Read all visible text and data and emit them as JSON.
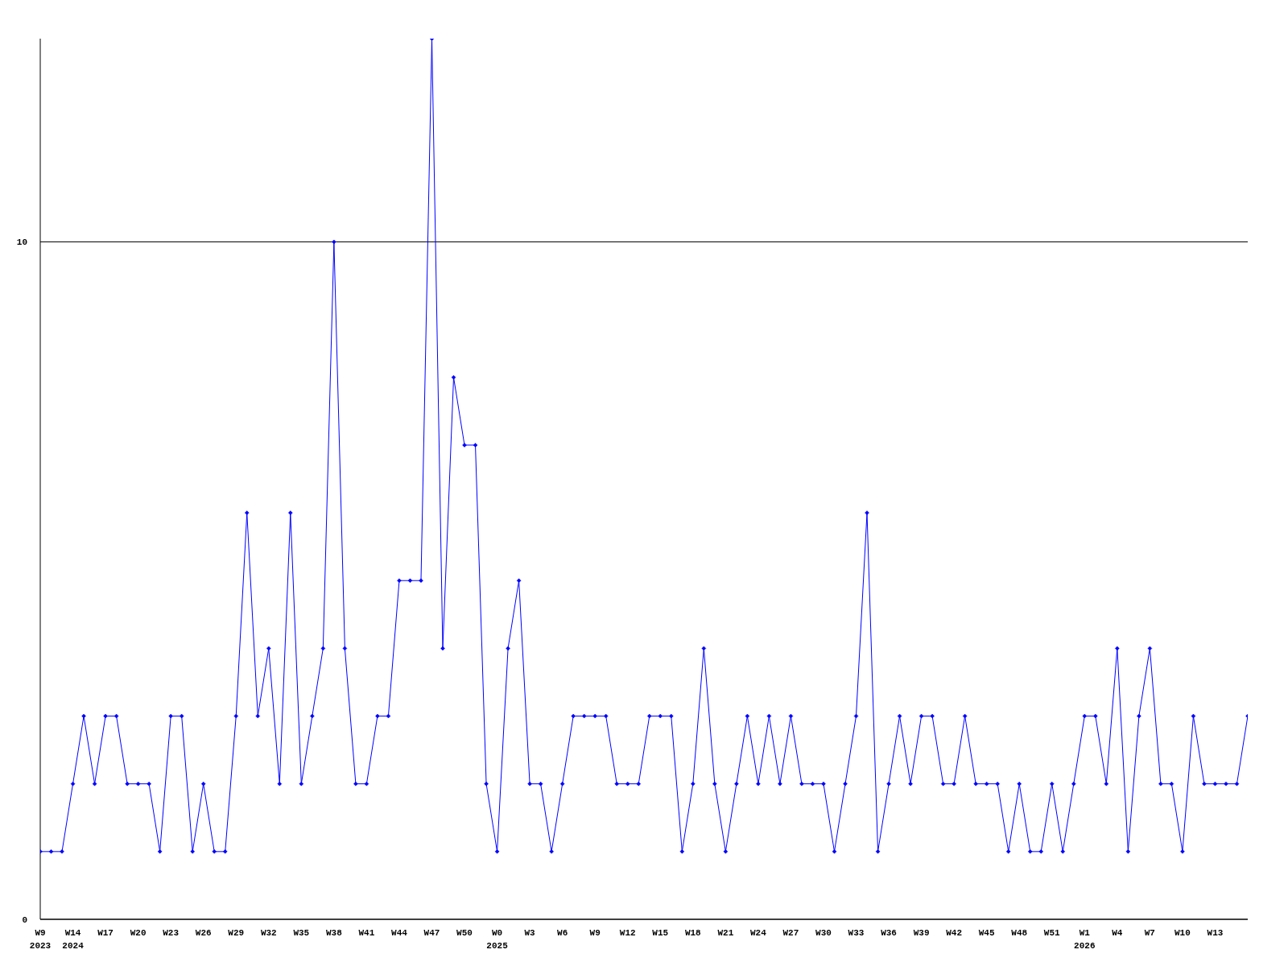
{
  "chart_data": {
    "type": "line",
    "categories": [
      "W9\n2023",
      null,
      null,
      "W14\n2024",
      null,
      null,
      "W17",
      null,
      null,
      "W20",
      null,
      null,
      "W23",
      null,
      null,
      "W26",
      null,
      null,
      "W29",
      null,
      null,
      "W32",
      null,
      null,
      "W35",
      null,
      null,
      "W38",
      null,
      null,
      "W41",
      null,
      null,
      "W44",
      null,
      null,
      "W47",
      null,
      null,
      "W50",
      null,
      null,
      "W0\n2025",
      null,
      null,
      "W3",
      null,
      null,
      "W6",
      null,
      null,
      "W9",
      null,
      null,
      "W12",
      null,
      null,
      "W15",
      null,
      null,
      "W18",
      null,
      null,
      "W21",
      null,
      null,
      "W24",
      null,
      null,
      "W27",
      null,
      null,
      "W30",
      null,
      null,
      "W33",
      null,
      null,
      "W36",
      null,
      null,
      "W39",
      null,
      null,
      "W42",
      null,
      null,
      "W45",
      null,
      null,
      "W48",
      null,
      null,
      "W51",
      null,
      null,
      "W1\n2026",
      null,
      null,
      "W4",
      null,
      null,
      "W7",
      null,
      null,
      "W10",
      null,
      null,
      "W13",
      null,
      null,
      null
    ],
    "series": [
      {
        "color": "#0000ff",
        "values": [
          1,
          1,
          1,
          2,
          3,
          2,
          3,
          3,
          2,
          2,
          2,
          1,
          3,
          3,
          1,
          2,
          1,
          1,
          3,
          6,
          3,
          4,
          2,
          6,
          2,
          3,
          4,
          10,
          4,
          2,
          2,
          3,
          3,
          5,
          5,
          5,
          13,
          4,
          8,
          7,
          7,
          2,
          1,
          4,
          5,
          2,
          2,
          1,
          2,
          3,
          3,
          3,
          3,
          2,
          2,
          2,
          3,
          3,
          3,
          1,
          2,
          4,
          2,
          1,
          2,
          3,
          2,
          3,
          2,
          3,
          2,
          2,
          2,
          1,
          2,
          3,
          6,
          1,
          2,
          3,
          2,
          3,
          3,
          2,
          2,
          3,
          2,
          2,
          2,
          1,
          2,
          1,
          1,
          2,
          1,
          2,
          3,
          3,
          2,
          4,
          1,
          3,
          4,
          2,
          2,
          1,
          3,
          2,
          2,
          2,
          2,
          3
        ]
      }
    ],
    "ylim": [
      0,
      13
    ],
    "yticks": [
      0,
      10
    ],
    "grid": "y",
    "marker": "diamond",
    "line_style": "solid"
  }
}
